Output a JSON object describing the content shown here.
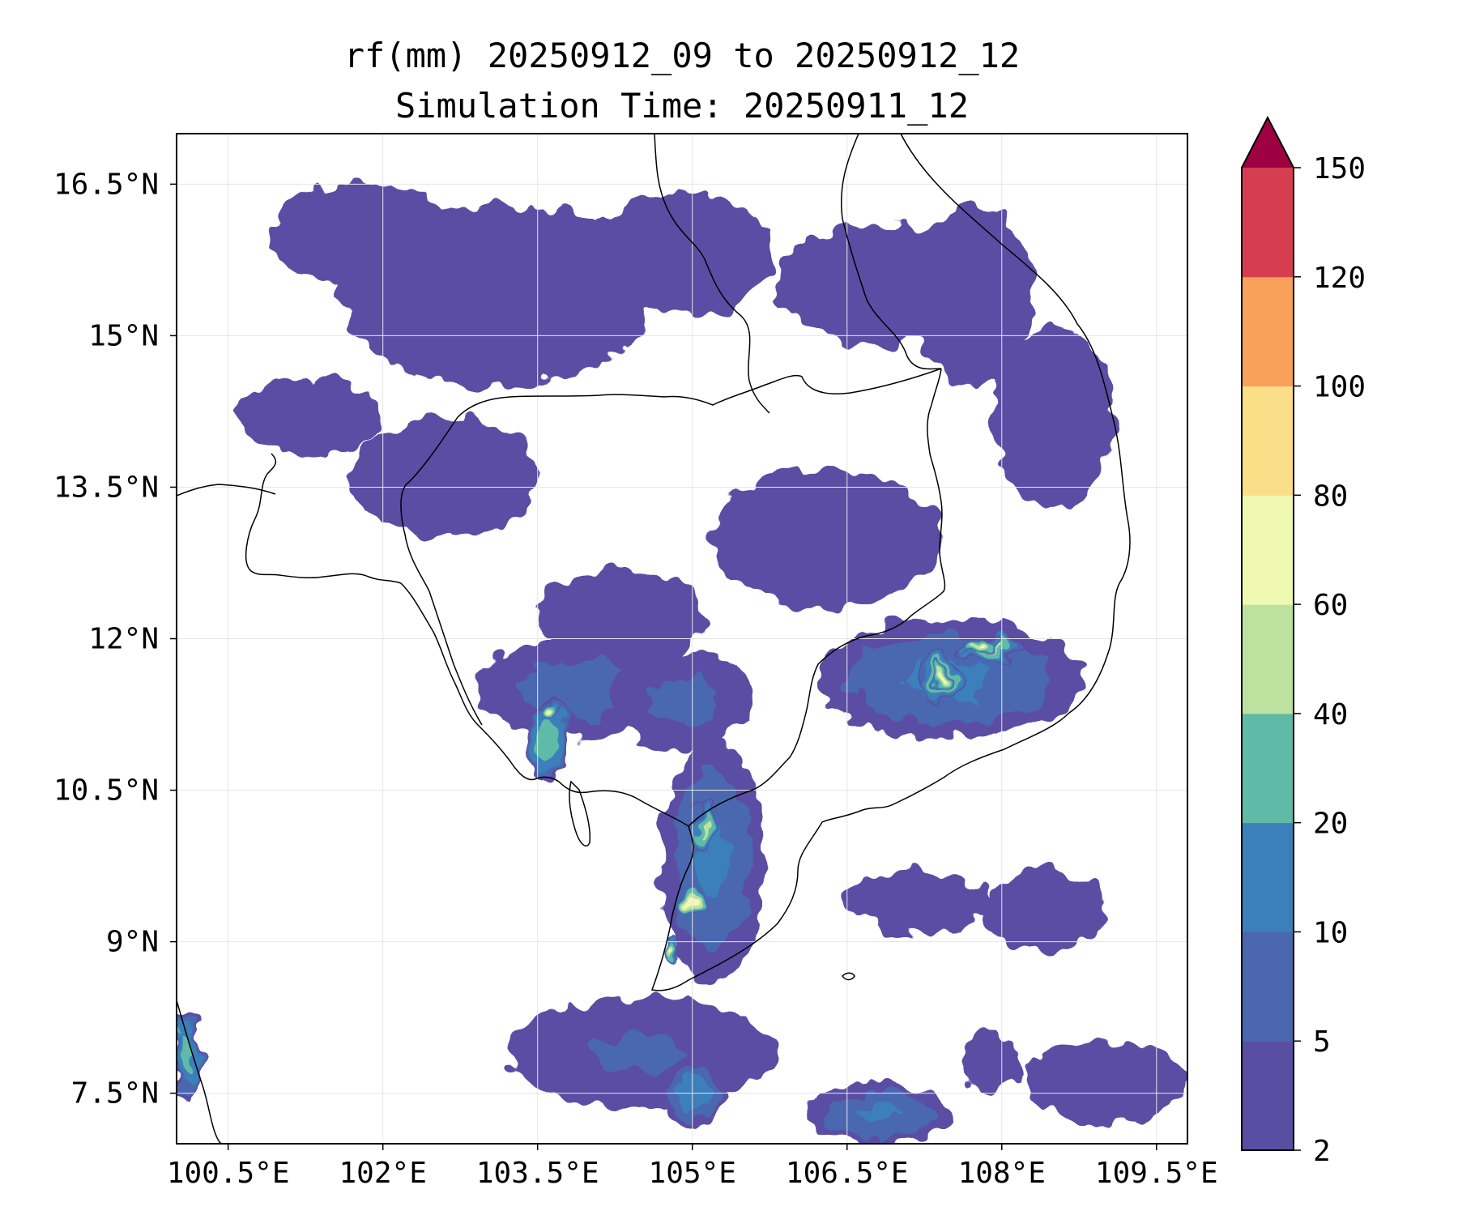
{
  "title": {
    "line1": "rf(mm) 20250912_09 to 20250912_12",
    "line2": "Simulation Time: 20250911_12"
  },
  "map": {
    "lon_range": [
      100.0,
      109.8
    ],
    "lat_range": [
      7.0,
      17.0
    ],
    "lon_ticks": [
      {
        "value": 100.5,
        "label": "100.5°E"
      },
      {
        "value": 102,
        "label": "102°E"
      },
      {
        "value": 103.5,
        "label": "103.5°E"
      },
      {
        "value": 105,
        "label": "105°E"
      },
      {
        "value": 106.5,
        "label": "106.5°E"
      },
      {
        "value": 108,
        "label": "108°E"
      },
      {
        "value": 109.5,
        "label": "109.5°E"
      }
    ],
    "lat_ticks": [
      {
        "value": 7.5,
        "label": "7.5°N"
      },
      {
        "value": 9,
        "label": "9°N"
      },
      {
        "value": 10.5,
        "label": "10.5°N"
      },
      {
        "value": 12,
        "label": "12°N"
      },
      {
        "value": 13.5,
        "label": "13.5°N"
      },
      {
        "value": 15,
        "label": "15°N"
      },
      {
        "value": 16.5,
        "label": "16.5°N"
      }
    ],
    "grid": true
  },
  "colorbar": {
    "levels": [
      2,
      5,
      10,
      20,
      40,
      60,
      80,
      100,
      120,
      150
    ],
    "labels": [
      "2",
      "5",
      "10",
      "20",
      "40",
      "60",
      "80",
      "100",
      "120",
      "150"
    ],
    "colors": [
      "#5a4ea3",
      "#4a67b0",
      "#3b80ba",
      "#5fbaa7",
      "#bde29f",
      "#f0f9b2",
      "#fbde88",
      "#f9a15a",
      "#d53e4f"
    ],
    "extend_color": "#9e0142",
    "extend": "max"
  },
  "chart_data": {
    "type": "heatmap",
    "variable": "rf(mm)",
    "x_axis": "longitude (°E)",
    "y_axis": "latitude (°N)",
    "xlim": [
      100.0,
      109.8
    ],
    "ylim": [
      7.0,
      17.0
    ],
    "xticks": [
      100.5,
      102,
      103.5,
      105,
      106.5,
      108,
      109.5
    ],
    "yticks": [
      7.5,
      9,
      10.5,
      12,
      13.5,
      15,
      16.5
    ],
    "contour_levels": [
      2,
      5,
      10,
      20,
      40,
      60,
      80,
      100,
      120,
      150
    ],
    "rain_areas": [
      {
        "lon": 101.8,
        "lat": 16.0,
        "rx": 0.9,
        "ry": 0.5,
        "value": 3
      },
      {
        "lon": 103.1,
        "lat": 15.4,
        "rx": 1.5,
        "ry": 0.9,
        "value": 4
      },
      {
        "lon": 101.3,
        "lat": 14.2,
        "rx": 0.7,
        "ry": 0.4,
        "value": 3
      },
      {
        "lon": 102.6,
        "lat": 13.6,
        "rx": 0.9,
        "ry": 0.6,
        "value": 5
      },
      {
        "lon": 104.9,
        "lat": 15.8,
        "rx": 0.9,
        "ry": 0.6,
        "value": 3
      },
      {
        "lon": 106.8,
        "lat": 15.5,
        "rx": 1.0,
        "ry": 0.6,
        "value": 3
      },
      {
        "lon": 107.7,
        "lat": 15.4,
        "rx": 0.6,
        "ry": 0.9,
        "value": 3
      },
      {
        "lon": 108.5,
        "lat": 14.2,
        "rx": 0.6,
        "ry": 0.9,
        "value": 4
      },
      {
        "lon": 104.3,
        "lat": 12.2,
        "rx": 0.8,
        "ry": 0.5,
        "value": 3
      },
      {
        "lon": 106.3,
        "lat": 13.0,
        "rx": 1.1,
        "ry": 0.7,
        "value": 3
      },
      {
        "lon": 103.9,
        "lat": 11.5,
        "rx": 1.0,
        "ry": 0.5,
        "value": 8
      },
      {
        "lon": 104.9,
        "lat": 11.4,
        "rx": 0.7,
        "ry": 0.5,
        "value": 7
      },
      {
        "lon": 103.6,
        "lat": 11.0,
        "rx": 0.2,
        "ry": 0.45,
        "value": 30
      },
      {
        "lon": 103.6,
        "lat": 11.3,
        "rx": 0.08,
        "ry": 0.08,
        "value": 70
      },
      {
        "lon": 107.5,
        "lat": 11.6,
        "rx": 1.3,
        "ry": 0.6,
        "value": 12
      },
      {
        "lon": 107.9,
        "lat": 11.9,
        "rx": 0.3,
        "ry": 0.12,
        "value": 45
      },
      {
        "lon": 107.8,
        "lat": 11.95,
        "rx": 0.18,
        "ry": 0.07,
        "value": 70
      },
      {
        "lon": 107.4,
        "lat": 11.6,
        "rx": 0.18,
        "ry": 0.25,
        "value": 45
      },
      {
        "lon": 107.4,
        "lat": 11.6,
        "rx": 0.08,
        "ry": 0.12,
        "value": 70
      },
      {
        "lon": 105.2,
        "lat": 9.8,
        "rx": 0.5,
        "ry": 1.2,
        "value": 12
      },
      {
        "lon": 105.1,
        "lat": 10.1,
        "rx": 0.12,
        "ry": 0.25,
        "value": 45
      },
      {
        "lon": 105.0,
        "lat": 9.4,
        "rx": 0.12,
        "ry": 0.12,
        "value": 70
      },
      {
        "lon": 104.8,
        "lat": 8.9,
        "rx": 0.08,
        "ry": 0.12,
        "value": 70
      },
      {
        "lon": 104.5,
        "lat": 7.9,
        "rx": 1.3,
        "ry": 0.55,
        "value": 6
      },
      {
        "lon": 105.0,
        "lat": 7.5,
        "rx": 0.3,
        "ry": 0.3,
        "value": 15
      },
      {
        "lon": 106.8,
        "lat": 7.3,
        "rx": 0.7,
        "ry": 0.3,
        "value": 12
      },
      {
        "lon": 107.2,
        "lat": 9.4,
        "rx": 0.7,
        "ry": 0.3,
        "value": 3
      },
      {
        "lon": 108.4,
        "lat": 9.3,
        "rx": 0.6,
        "ry": 0.4,
        "value": 3
      },
      {
        "lon": 109.0,
        "lat": 7.6,
        "rx": 0.8,
        "ry": 0.4,
        "value": 4
      },
      {
        "lon": 107.9,
        "lat": 7.8,
        "rx": 0.3,
        "ry": 0.3,
        "value": 3
      },
      {
        "lon": 100.1,
        "lat": 7.9,
        "rx": 0.15,
        "ry": 0.4,
        "value": 30
      }
    ]
  }
}
